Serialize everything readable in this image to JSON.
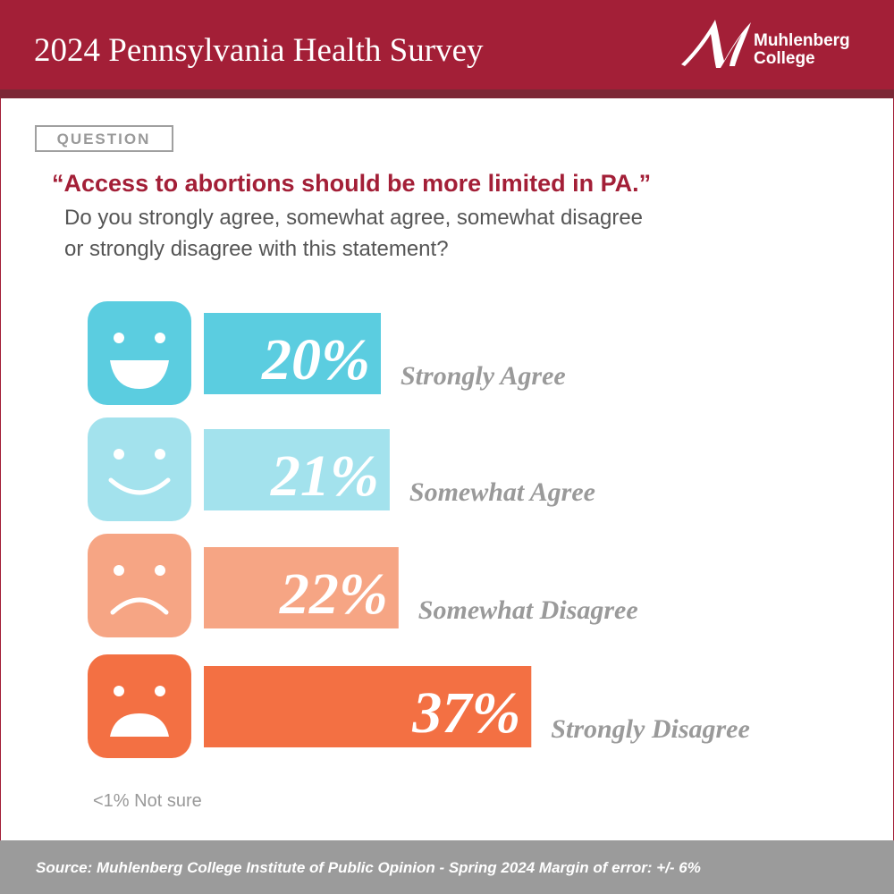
{
  "header": {
    "title": "2024 Pennsylvania Health Survey",
    "logo_lines": [
      "Muhlenberg",
      "College"
    ]
  },
  "question": {
    "label": "QUESTION",
    "quote": "“Access to abortions should be more limited in PA.”",
    "text_lines": [
      "Do you strongly agree, somewhat agree, somewhat disagree",
      "or strongly disagree with this statement?"
    ]
  },
  "chart_data": {
    "type": "bar",
    "categories": [
      "Strongly Agree",
      "Somewhat Agree",
      "Somewhat Disagree",
      "Strongly Disagree"
    ],
    "values": [
      20,
      21,
      22,
      37
    ],
    "value_labels": [
      "20%",
      "21%",
      "22%",
      "37%"
    ],
    "colors": [
      "#5bcde0",
      "#a3e2ed",
      "#f6a584",
      "#f37043"
    ]
  },
  "note": "<1% Not sure",
  "source": "Source: Muhlenberg College Institute of Public Opinion - Spring 2024 Margin of error: +/- 6%"
}
